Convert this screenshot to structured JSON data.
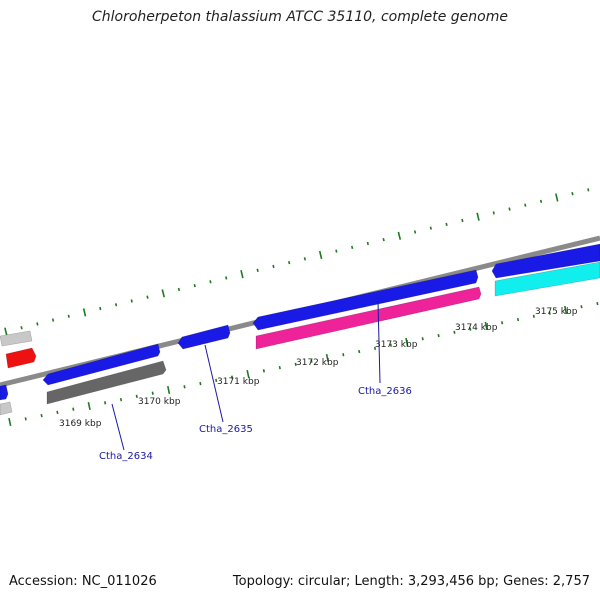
{
  "title": "Chloroherpeton thalassium ATCC 35110, complete genome",
  "footer": {
    "accession": "Accession: NC_011026",
    "summary": "Topology: circular; Length: 3,293,456 bp; Genes: 2,757"
  },
  "kbp_labels": [
    "3169 kbp",
    "3170 kbp",
    "3171 kbp",
    "3172 kbp",
    "3173 kbp",
    "3174 kbp",
    "3175 kbp"
  ],
  "gene_labels": [
    "Ctha_2634",
    "Ctha_2635",
    "Ctha_2636"
  ],
  "colors": {
    "backbone": "#8a8a8a",
    "tick": "#1e7a1e",
    "cds": "#1a1ae6",
    "gene": "#666666",
    "red": "#ee1111",
    "magenta": "#ee2299",
    "cyan": "#11eeee",
    "light": "#c8c8c8",
    "label": "#1a1aa6"
  }
}
